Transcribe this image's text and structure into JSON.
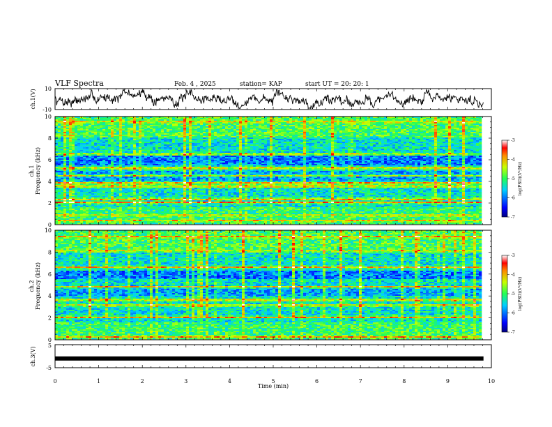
{
  "header": {
    "title": "VLF Spectra",
    "date": "Feb. 4 , 2025",
    "station": "station= KAP",
    "start": "start UT = 20: 20: 1"
  },
  "chart_data": [
    {
      "type": "line",
      "name": "ch1-waveform",
      "ylabel": "ch.1(V)",
      "ylim": [
        -10,
        10
      ],
      "xlim": [
        0,
        10
      ],
      "trace_seed": 7,
      "trace_range": [
        -9,
        9
      ],
      "color": "#000000"
    },
    {
      "type": "heatmap",
      "name": "ch1-spectrogram",
      "ylabel": "Frequency (kHz)",
      "channel_label": "ch.1",
      "xlim": [
        0,
        9.8
      ],
      "ylim": [
        0,
        10
      ],
      "yticks": [
        "0",
        "2",
        "4",
        "6",
        "8",
        "10"
      ],
      "colorbar": {
        "label": "log(PSD)(V²/Hz)",
        "ticks": [
          "-3",
          "-4",
          "-5",
          "-6",
          "-7"
        ],
        "range": [
          -7,
          -3
        ]
      },
      "seed": 11,
      "bands_khz": [
        {
          "f": 0.3,
          "level": -4.0
        },
        {
          "f": 0.8,
          "level": -4.3
        },
        {
          "f": 2.0,
          "level": -3.7
        },
        {
          "f": 2.3,
          "level": -3.8
        },
        {
          "f": 3.5,
          "level": -3.8
        },
        {
          "f": 3.8,
          "level": -3.7
        },
        {
          "f": 4.5,
          "level": -4.4
        },
        {
          "f": 5.2,
          "level": -3.8
        },
        {
          "f": 6.5,
          "level": -4.1
        },
        {
          "f": 9.5,
          "level": -4.1
        }
      ]
    },
    {
      "type": "heatmap",
      "name": "ch2-spectrogram",
      "ylabel": "Frequency (kHz)",
      "channel_label": "ch.2",
      "xlim": [
        0,
        9.8
      ],
      "ylim": [
        0,
        10
      ],
      "yticks": [
        "0",
        "2",
        "4",
        "6",
        "8",
        "10"
      ],
      "colorbar": {
        "label": "log(PSD)(V²/Hz)",
        "ticks": [
          "-3",
          "-4",
          "-5",
          "-6",
          "-7"
        ],
        "range": [
          -7,
          -3
        ]
      },
      "seed": 23,
      "bands_khz": [
        {
          "f": 0.2,
          "level": -3.9
        },
        {
          "f": 2.0,
          "level": -3.8
        },
        {
          "f": 3.1,
          "level": -4.0
        },
        {
          "f": 3.6,
          "level": -3.8
        },
        {
          "f": 4.8,
          "level": -4.1
        },
        {
          "f": 6.6,
          "level": -4.0
        },
        {
          "f": 8.1,
          "level": -4.3
        },
        {
          "f": 9.4,
          "level": -3.9
        }
      ]
    },
    {
      "type": "line",
      "name": "ch3-signal",
      "ylabel": "ch.3(V)",
      "ylim": [
        -5,
        5
      ],
      "xlim": [
        0,
        10
      ],
      "level_v": -1.0,
      "color": "#000000",
      "xlabel": "Time (min)",
      "xticks": [
        "0",
        "1",
        "2",
        "3",
        "4",
        "5",
        "6",
        "7",
        "8",
        "9",
        "10"
      ]
    }
  ],
  "axis_labels": {
    "ch1_v_ticks": [
      "10",
      "-10"
    ],
    "ch3_v_ticks": [
      "5",
      "-5"
    ]
  }
}
